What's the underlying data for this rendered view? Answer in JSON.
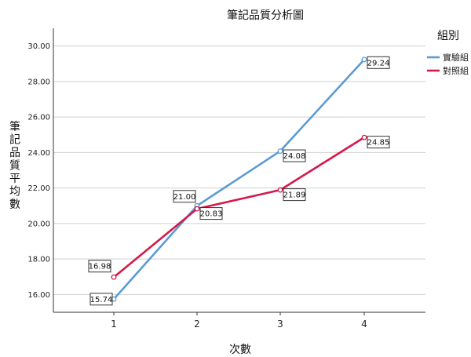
{
  "chart_data": {
    "type": "line",
    "title": "筆記品質分析圖",
    "xlabel": "次數",
    "ylabel": "筆記品質平均數",
    "categories": [
      "1",
      "2",
      "3",
      "4"
    ],
    "ylim": [
      15.0,
      31.0
    ],
    "yticks": [
      "16.00",
      "18.00",
      "20.00",
      "22.00",
      "24.00",
      "26.00",
      "28.00",
      "30.00"
    ],
    "grid": true,
    "legend_title": "組別",
    "legend_position": "right",
    "series": [
      {
        "name": "實驗組",
        "values": [
          15.74,
          21.0,
          24.08,
          29.24
        ],
        "labels": [
          "15.74",
          "21.00",
          "24.08",
          "29.24"
        ],
        "color": "#5b9bd5"
      },
      {
        "name": "對照組",
        "values": [
          16.98,
          20.83,
          21.89,
          24.85
        ],
        "labels": [
          "16.98",
          "20.83",
          "21.89",
          "24.85"
        ],
        "color": "#d6184a"
      }
    ]
  }
}
